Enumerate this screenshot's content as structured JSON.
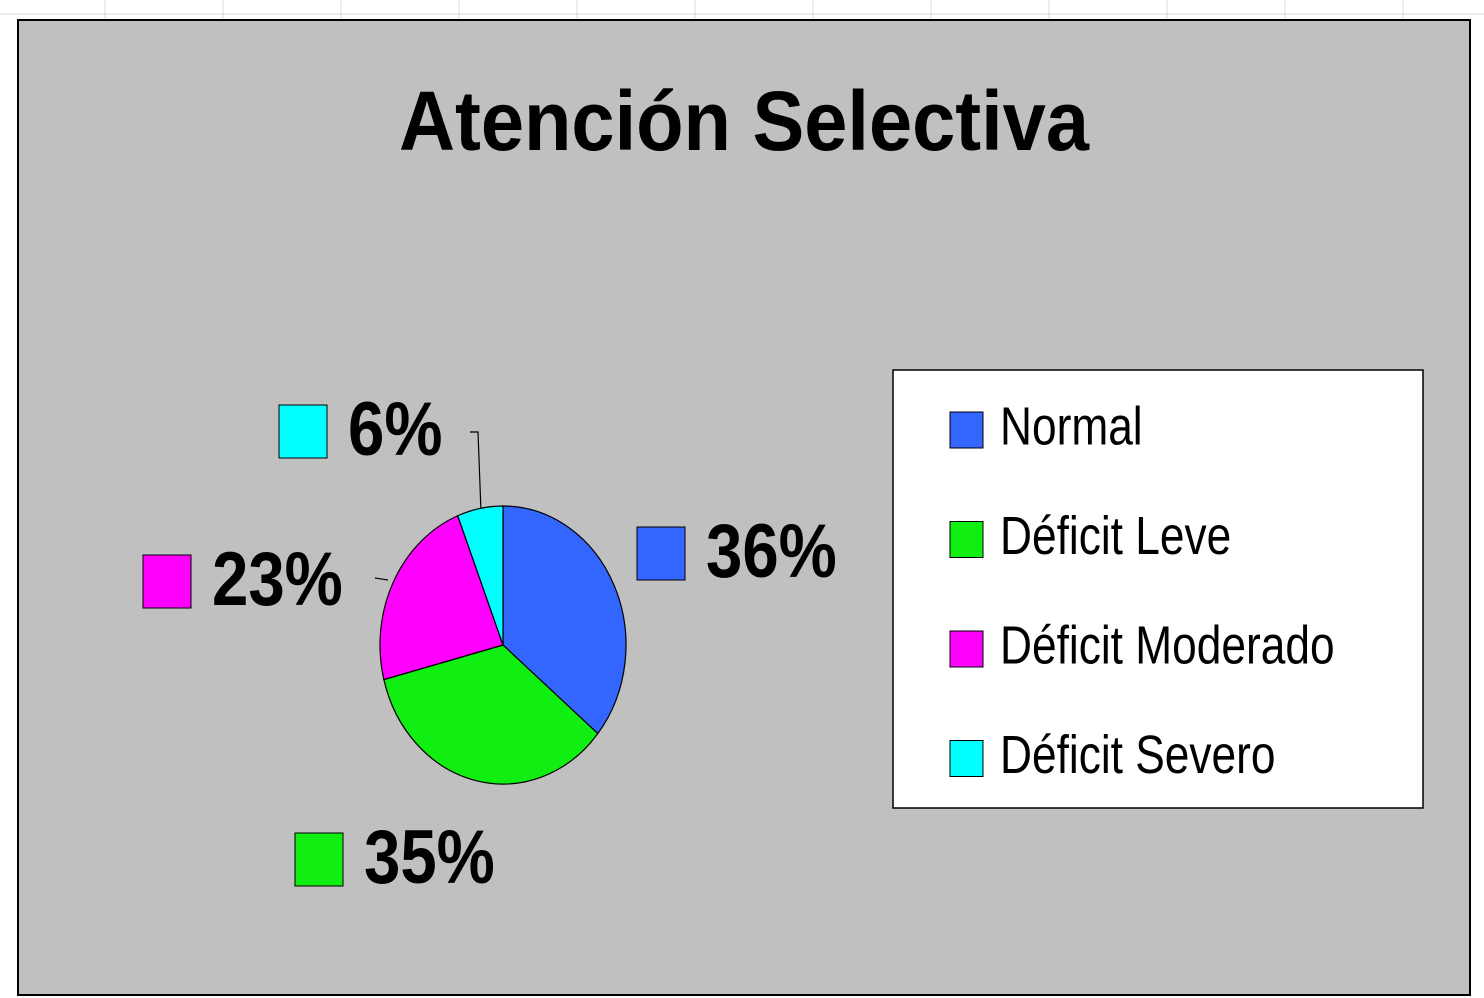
{
  "chart_data": {
    "type": "pie",
    "title": "Atención Selectiva",
    "categories": [
      "Normal",
      "Déficit Leve",
      "Déficit Moderado",
      "Déficit Severo"
    ],
    "values": [
      36,
      35,
      23,
      6
    ],
    "value_labels": [
      "36%",
      "35%",
      "23%",
      "6%"
    ],
    "colors": [
      "#3366ff",
      "#11ee11",
      "#ff00ff",
      "#00ffff"
    ],
    "legend": "right"
  }
}
